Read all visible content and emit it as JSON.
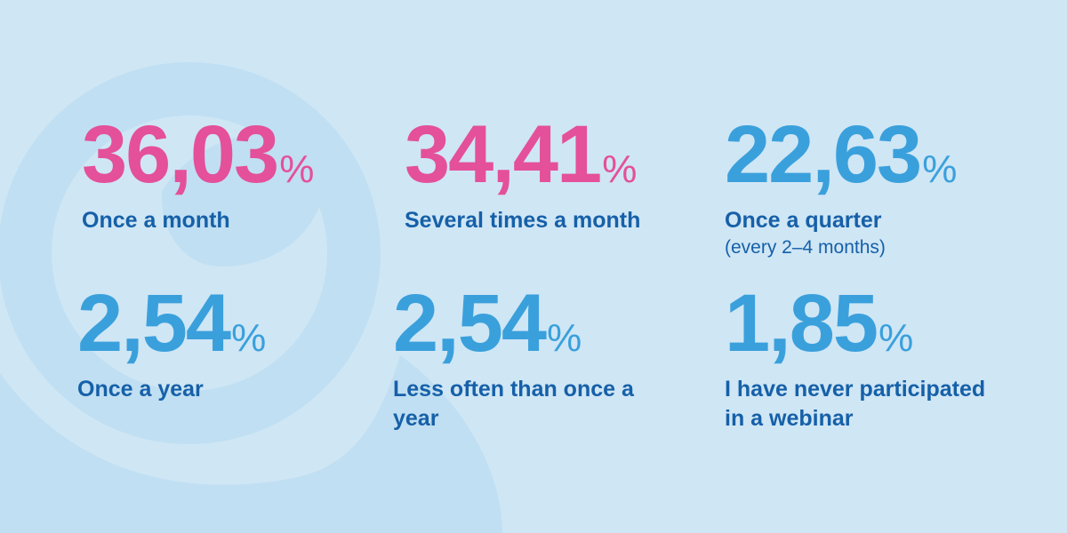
{
  "colors": {
    "background": "#cfe6f5",
    "accent_pink": "#e4509a",
    "accent_blue": "#3aa0dc",
    "label": "#1660a8"
  },
  "stats": [
    {
      "value": "36,03",
      "unit": "%",
      "label": "Once a month",
      "color": "#e4509a"
    },
    {
      "value": "34,41",
      "unit": "%",
      "label": "Several times a month",
      "color": "#e4509a"
    },
    {
      "value": "22,63",
      "unit": "%",
      "label": "Once a quarter",
      "sublabel": "(every 2–4 months)",
      "color": "#3aa0dc"
    },
    {
      "value": "2,54",
      "unit": "%",
      "label": "Once a year",
      "color": "#3aa0dc"
    },
    {
      "value": "2,54",
      "unit": "%",
      "label": "Less often than once a year",
      "color": "#3aa0dc"
    },
    {
      "value": "1,85",
      "unit": "%",
      "label": "I have never participated in a webinar",
      "color": "#3aa0dc"
    }
  ]
}
